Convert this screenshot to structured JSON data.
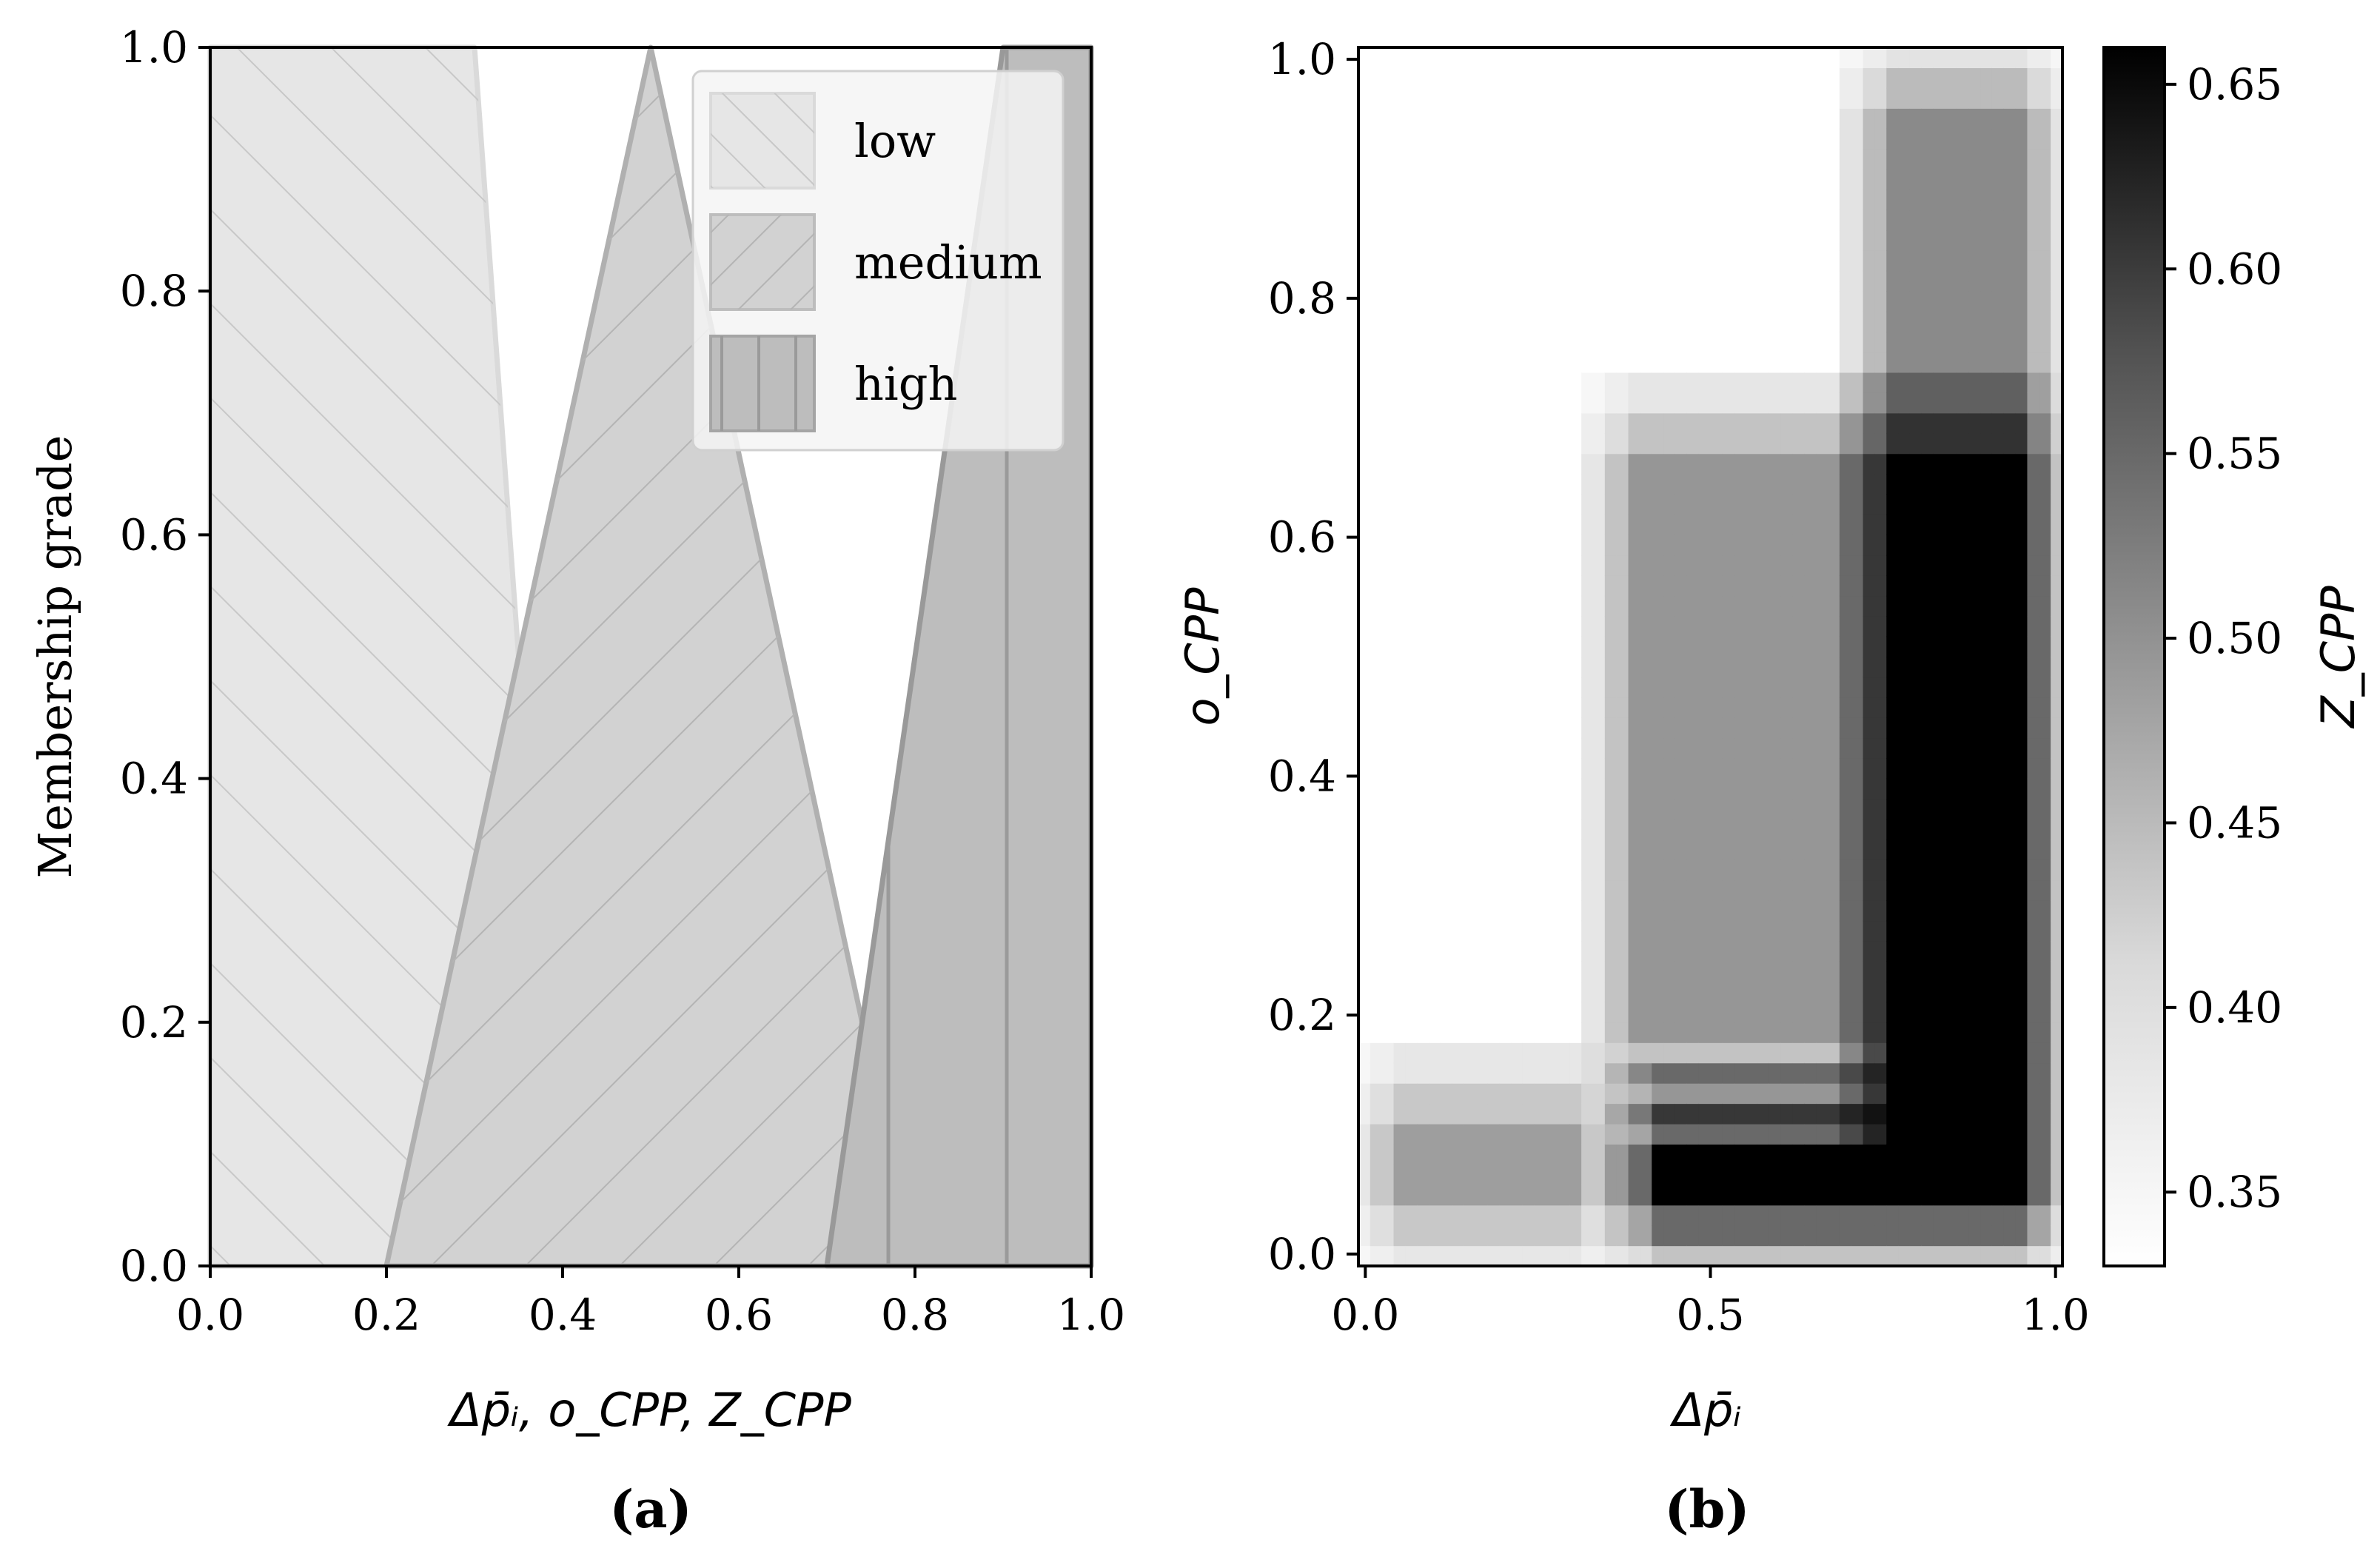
{
  "chart_data": [
    {
      "type": "area",
      "panel_label": "(a)",
      "xlabel": "Δp̄ᵢ, o_CPP, Z_CPP",
      "ylabel": "Membership grade",
      "xlim": [
        0.0,
        1.0
      ],
      "ylim": [
        0.0,
        1.0
      ],
      "xticks": [
        "0.0",
        "0.2",
        "0.4",
        "0.6",
        "0.8",
        "1.0"
      ],
      "yticks": [
        "0.0",
        "0.2",
        "0.4",
        "0.6",
        "0.8",
        "1.0"
      ],
      "grid": false,
      "legend_position": "top-right",
      "series": [
        {
          "name": "low",
          "x": [
            0.0,
            0.0,
            0.3,
            0.4
          ],
          "y": [
            0.0,
            1.0,
            1.0,
            0.0
          ],
          "color": "#e6e6e6",
          "hatch": "/"
        },
        {
          "name": "medium",
          "x": [
            0.2,
            0.5,
            0.8
          ],
          "y": [
            0.0,
            1.0,
            0.0
          ],
          "color": "#d2d2d2",
          "hatch": "\\"
        },
        {
          "name": "high",
          "x": [
            0.7,
            0.9,
            1.0,
            1.0
          ],
          "y": [
            0.0,
            1.0,
            1.0,
            0.0
          ],
          "color": "#bdbdbd",
          "hatch": "|"
        }
      ]
    },
    {
      "type": "heatmap",
      "panel_label": "(b)",
      "xlabel": "Δp̄ᵢ",
      "ylabel": "o_CPP",
      "colorbar_label": "Z_CPP",
      "xlim": [
        0.0,
        1.0
      ],
      "ylim": [
        0.0,
        1.0
      ],
      "xticks": [
        "0.0",
        "0.5",
        "1.0"
      ],
      "yticks": [
        "0.0",
        "0.2",
        "0.4",
        "0.6",
        "0.8",
        "1.0"
      ],
      "colorbar_ticks": [
        "0.35",
        "0.40",
        "0.45",
        "0.50",
        "0.55",
        "0.60",
        "0.65"
      ],
      "zlim": [
        0.33,
        0.66
      ],
      "colormap": "Greys",
      "regions": [
        {
          "x": [
            0.0,
            0.35
          ],
          "y": [
            0.0,
            0.15
          ],
          "z": 0.485
        },
        {
          "x": [
            0.35,
            0.72
          ],
          "y": [
            0.15,
            0.7
          ],
          "z": 0.495
        },
        {
          "x": [
            0.38,
            1.0
          ],
          "y": [
            0.0,
            0.13
          ],
          "z": 0.66
        },
        {
          "x": [
            0.72,
            1.0
          ],
          "y": [
            0.0,
            0.7
          ],
          "z": 0.66
        },
        {
          "x": [
            0.72,
            1.0
          ],
          "y": [
            0.7,
            1.0
          ],
          "z": 0.51
        },
        {
          "x": [
            0.0,
            1.0
          ],
          "y": [
            0.0,
            1.0
          ],
          "z": 0.33
        }
      ]
    }
  ]
}
